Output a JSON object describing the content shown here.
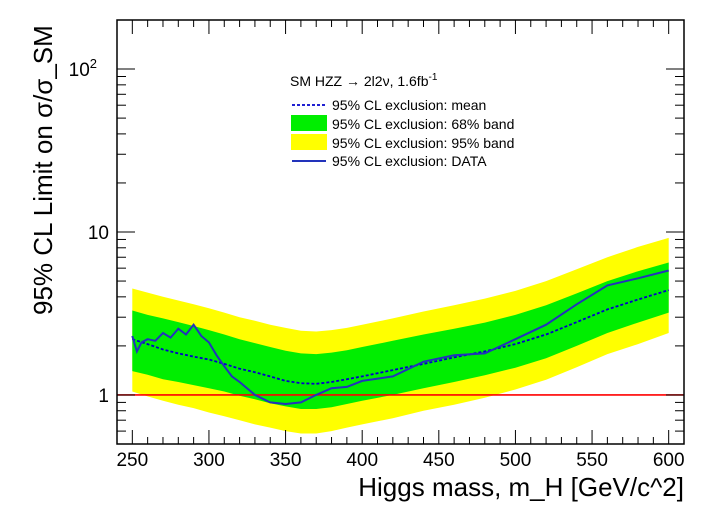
{
  "chart_data": {
    "type": "line",
    "title": "",
    "xlabel": "Higgs mass, m_H [GeV/c^2]",
    "ylabel": "95% CL Limit on σ/σ_SM",
    "xlim": [
      240,
      610
    ],
    "ylim": [
      0.5,
      200
    ],
    "yscale": "log",
    "x_ticks": [
      250,
      300,
      350,
      400,
      450,
      500,
      550,
      600
    ],
    "y_tick_labels": [
      {
        "value": 1,
        "label": "1"
      },
      {
        "value": 10,
        "label": "10"
      },
      {
        "value": 100,
        "label": "10",
        "exponent": "2"
      }
    ],
    "reference_line": {
      "y": 1,
      "color": "#ff0000"
    },
    "legend": {
      "header": {
        "main": "SM HZZ → 2l2ν, 1.6fb",
        "superscript": "-1"
      },
      "entries": [
        {
          "label": "95% CL exclusion: mean",
          "style": "dashed-line",
          "color": "#0000cc"
        },
        {
          "label": "95% CL exclusion: 68% band",
          "style": "fill",
          "color": "#00ee00"
        },
        {
          "label": "95% CL exclusion: 95% band",
          "style": "fill",
          "color": "#ffff00"
        },
        {
          "label": "95% CL exclusion: DATA",
          "style": "solid-line",
          "color": "#2233bb"
        }
      ],
      "position": "top-center"
    },
    "series": [
      {
        "name": "95% CL exclusion: mean",
        "x": [
          250,
          260,
          270,
          280,
          290,
          300,
          310,
          320,
          330,
          340,
          350,
          360,
          370,
          380,
          390,
          400,
          420,
          440,
          460,
          480,
          500,
          520,
          540,
          560,
          580,
          600
        ],
        "y": [
          2.2,
          2.05,
          1.9,
          1.8,
          1.72,
          1.65,
          1.55,
          1.45,
          1.38,
          1.3,
          1.22,
          1.18,
          1.17,
          1.2,
          1.25,
          1.3,
          1.42,
          1.55,
          1.7,
          1.85,
          2.05,
          2.35,
          2.8,
          3.35,
          3.85,
          4.4
        ]
      },
      {
        "name": "68% band",
        "x": [
          250,
          260,
          270,
          280,
          290,
          300,
          310,
          320,
          330,
          340,
          350,
          360,
          370,
          380,
          390,
          400,
          420,
          440,
          460,
          480,
          500,
          520,
          540,
          560,
          580,
          600
        ],
        "low": [
          1.4,
          1.33,
          1.25,
          1.2,
          1.15,
          1.1,
          1.05,
          0.99,
          0.94,
          0.89,
          0.85,
          0.82,
          0.82,
          0.84,
          0.88,
          0.92,
          1.0,
          1.1,
          1.2,
          1.32,
          1.47,
          1.68,
          2.0,
          2.4,
          2.78,
          3.2
        ],
        "high": [
          3.3,
          3.1,
          2.95,
          2.8,
          2.65,
          2.5,
          2.35,
          2.2,
          2.08,
          1.97,
          1.87,
          1.8,
          1.78,
          1.82,
          1.88,
          1.97,
          2.15,
          2.35,
          2.55,
          2.78,
          3.1,
          3.55,
          4.2,
          5.0,
          5.75,
          6.5
        ]
      },
      {
        "name": "95% band",
        "x": [
          250,
          260,
          270,
          280,
          290,
          300,
          310,
          320,
          330,
          340,
          350,
          360,
          370,
          380,
          390,
          400,
          420,
          440,
          460,
          480,
          500,
          520,
          540,
          560,
          580,
          600
        ],
        "low": [
          1.05,
          0.98,
          0.92,
          0.87,
          0.83,
          0.78,
          0.74,
          0.7,
          0.66,
          0.63,
          0.6,
          0.58,
          0.58,
          0.6,
          0.63,
          0.66,
          0.72,
          0.8,
          0.87,
          0.96,
          1.08,
          1.24,
          1.48,
          1.78,
          2.05,
          2.4
        ],
        "high": [
          4.5,
          4.25,
          4.0,
          3.8,
          3.6,
          3.4,
          3.2,
          3.0,
          2.85,
          2.7,
          2.58,
          2.48,
          2.45,
          2.5,
          2.58,
          2.7,
          2.95,
          3.25,
          3.55,
          3.9,
          4.35,
          5.0,
          5.9,
          7.0,
          8.1,
          9.2
        ]
      },
      {
        "name": "95% CL exclusion: DATA",
        "x": [
          250,
          253,
          256,
          260,
          265,
          270,
          275,
          280,
          285,
          290,
          295,
          300,
          305,
          310,
          315,
          320,
          330,
          340,
          350,
          360,
          370,
          380,
          390,
          400,
          420,
          440,
          460,
          480,
          500,
          520,
          540,
          560,
          580,
          600
        ],
        "y": [
          2.3,
          1.85,
          2.1,
          2.2,
          2.15,
          2.4,
          2.25,
          2.55,
          2.35,
          2.7,
          2.3,
          2.1,
          1.75,
          1.5,
          1.3,
          1.2,
          1.0,
          0.9,
          0.88,
          0.9,
          1.0,
          1.1,
          1.12,
          1.22,
          1.3,
          1.6,
          1.75,
          1.8,
          2.2,
          2.7,
          3.6,
          4.7,
          5.2,
          5.8
        ]
      }
    ]
  }
}
